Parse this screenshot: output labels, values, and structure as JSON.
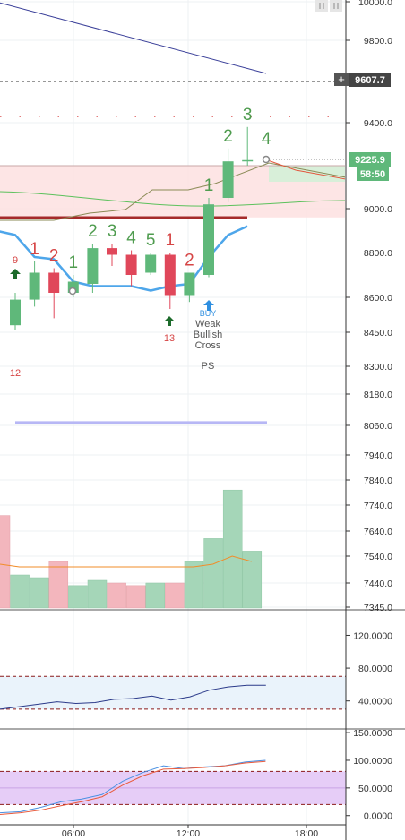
{
  "chart_data": [
    {
      "panel": "price",
      "type": "candlestick",
      "y_axis": {
        "ticks": [
          10000.0,
          9800.0,
          9400.0,
          9000.0,
          8600.0,
          8450.0,
          8300.0,
          8180.0,
          8060.0,
          7940.0,
          7840.0,
          7740.0,
          7640.0,
          7540.0,
          7440.0,
          7345.0
        ],
        "tick_labels": [
          "10000.0",
          "9800.0",
          "9400.0",
          "9000.0",
          "8600.0",
          "8450.0",
          "8300.0",
          "8180.0",
          "8060.0",
          "7940.0",
          "7840.0",
          "7740.0",
          "7640.0",
          "7540.0",
          "7440.0",
          "7345.0"
        ],
        "extra_labels": [
          "8800.0"
        ],
        "scale": "non-linear"
      },
      "price_labels": {
        "crosshair": "9607.7",
        "last_price": "9225.9",
        "countdown": "58:50"
      },
      "candles": [
        {
          "t": 0,
          "o": 8480,
          "h": 8620,
          "l": 8460,
          "c": 8590
        },
        {
          "t": 1,
          "o": 8590,
          "h": 8760,
          "l": 8560,
          "c": 8710
        },
        {
          "t": 2,
          "o": 8710,
          "h": 8730,
          "l": 8510,
          "c": 8620
        },
        {
          "t": 3,
          "o": 8620,
          "h": 8700,
          "l": 8600,
          "c": 8670
        },
        {
          "t": 4,
          "o": 8660,
          "h": 8840,
          "l": 8620,
          "c": 8820
        },
        {
          "t": 5,
          "o": 8820,
          "h": 8840,
          "l": 8740,
          "c": 8790
        },
        {
          "t": 6,
          "o": 8790,
          "h": 8810,
          "l": 8650,
          "c": 8700
        },
        {
          "t": 7,
          "o": 8710,
          "h": 8800,
          "l": 8700,
          "c": 8790
        },
        {
          "t": 8,
          "o": 8790,
          "h": 8800,
          "l": 8550,
          "c": 8610
        },
        {
          "t": 9,
          "o": 8610,
          "h": 8710,
          "l": 8580,
          "c": 8710
        },
        {
          "t": 10,
          "o": 8700,
          "h": 9050,
          "l": 8690,
          "c": 9020
        },
        {
          "t": 11,
          "o": 9050,
          "h": 9280,
          "l": 9030,
          "c": 9220
        },
        {
          "t": 12,
          "o": 9220,
          "h": 9380,
          "l": 9200,
          "c": 9226
        }
      ],
      "td_counts": [
        {
          "t": 1,
          "label": "1",
          "color": "red"
        },
        {
          "t": 2,
          "label": "2",
          "color": "red"
        },
        {
          "t": 3,
          "label": "1",
          "color": "green"
        },
        {
          "t": 4,
          "label": "2",
          "color": "green"
        },
        {
          "t": 5,
          "label": "3",
          "color": "green"
        },
        {
          "t": 6,
          "label": "4",
          "color": "green"
        },
        {
          "t": 7,
          "label": "5",
          "color": "green"
        },
        {
          "t": 8,
          "label": "1",
          "color": "red"
        },
        {
          "t": 9,
          "label": "2",
          "color": "red"
        },
        {
          "t": 10,
          "label": "1",
          "color": "green"
        },
        {
          "t": 11,
          "label": "2",
          "color": "green"
        },
        {
          "t": 12,
          "label": "3",
          "color": "green"
        },
        {
          "t": 13,
          "label": "4",
          "color": "green"
        }
      ],
      "small_labels": [
        "9",
        "12",
        "13"
      ],
      "annotation_labels": [
        "BUY",
        "Weak",
        "Bullish",
        "Cross",
        "PS"
      ],
      "upper_line": [
        [
          -1,
          10000
        ],
        [
          14,
          9600
        ]
      ],
      "cloud_top": [
        9200,
        9160
      ],
      "cloud_bottom": [
        8960,
        8980,
        9020
      ],
      "horizontal_levels": [
        8960,
        8070
      ],
      "blue_line": [
        [
          -1,
          8900
        ],
        [
          0,
          8880
        ],
        [
          1,
          8780
        ],
        [
          2,
          8770
        ],
        [
          3,
          8670
        ],
        [
          4,
          8650
        ],
        [
          5,
          8650
        ],
        [
          6,
          8650
        ],
        [
          7,
          8630
        ],
        [
          8,
          8650
        ],
        [
          9,
          8660
        ],
        [
          10,
          8780
        ],
        [
          11,
          8880
        ],
        [
          12,
          8920
        ]
      ],
      "dotted_levels": [
        9600,
        9430
      ]
    },
    {
      "panel": "volume",
      "type": "bar",
      "values": [
        7700,
        7470,
        7460,
        7520,
        7430,
        7450,
        7440,
        7430,
        7440,
        7440,
        7520,
        7610,
        7800,
        7560
      ],
      "up_down": [
        "down",
        "up",
        "up",
        "down",
        "up",
        "up",
        "down",
        "down",
        "up",
        "down",
        "up",
        "up",
        "up",
        "up"
      ],
      "ma_line": [
        7510,
        7500,
        7500,
        7500,
        7500,
        7500,
        7500,
        7500,
        7500,
        7500,
        7500,
        7510,
        7540,
        7520
      ],
      "colors": {
        "up": "#a5d6b8",
        "down": "#f3b6bd",
        "ma": "#f28c28"
      }
    },
    {
      "panel": "oscillator",
      "type": "line",
      "y_axis": {
        "ticks": [
          120,
          80,
          40
        ],
        "tick_labels": [
          "120.0000",
          "80.0000",
          "40.0000"
        ],
        "ylim": [
          8,
          150
        ]
      },
      "band": [
        30,
        70
      ],
      "values": [
        30,
        33,
        36,
        39,
        37,
        38,
        42,
        43,
        46,
        41,
        45,
        53,
        57,
        59,
        59
      ]
    },
    {
      "panel": "stochastic",
      "type": "line",
      "y_axis": {
        "ticks": [
          150,
          100,
          50,
          0
        ],
        "tick_labels": [
          "150.0000",
          "100.0000",
          "50.0000",
          "0.0000"
        ],
        "ylim": [
          -15,
          155
        ]
      },
      "band": [
        20,
        80
      ],
      "series": [
        {
          "color": "#4a90e2",
          "values": [
            5,
            7,
            15,
            25,
            30,
            38,
            62,
            78,
            90,
            85,
            88,
            90,
            97,
            100
          ]
        },
        {
          "color": "#e85a3c",
          "values": [
            2,
            5,
            10,
            18,
            25,
            34,
            55,
            72,
            84,
            85,
            87,
            90,
            95,
            98
          ]
        }
      ]
    }
  ],
  "x_axis": {
    "tick_labels": [
      "06:00",
      "12:00",
      "18:00"
    ]
  },
  "toolbar": {
    "icons": [
      "indicator-visibility-icon",
      "indicator-lock-icon"
    ]
  }
}
